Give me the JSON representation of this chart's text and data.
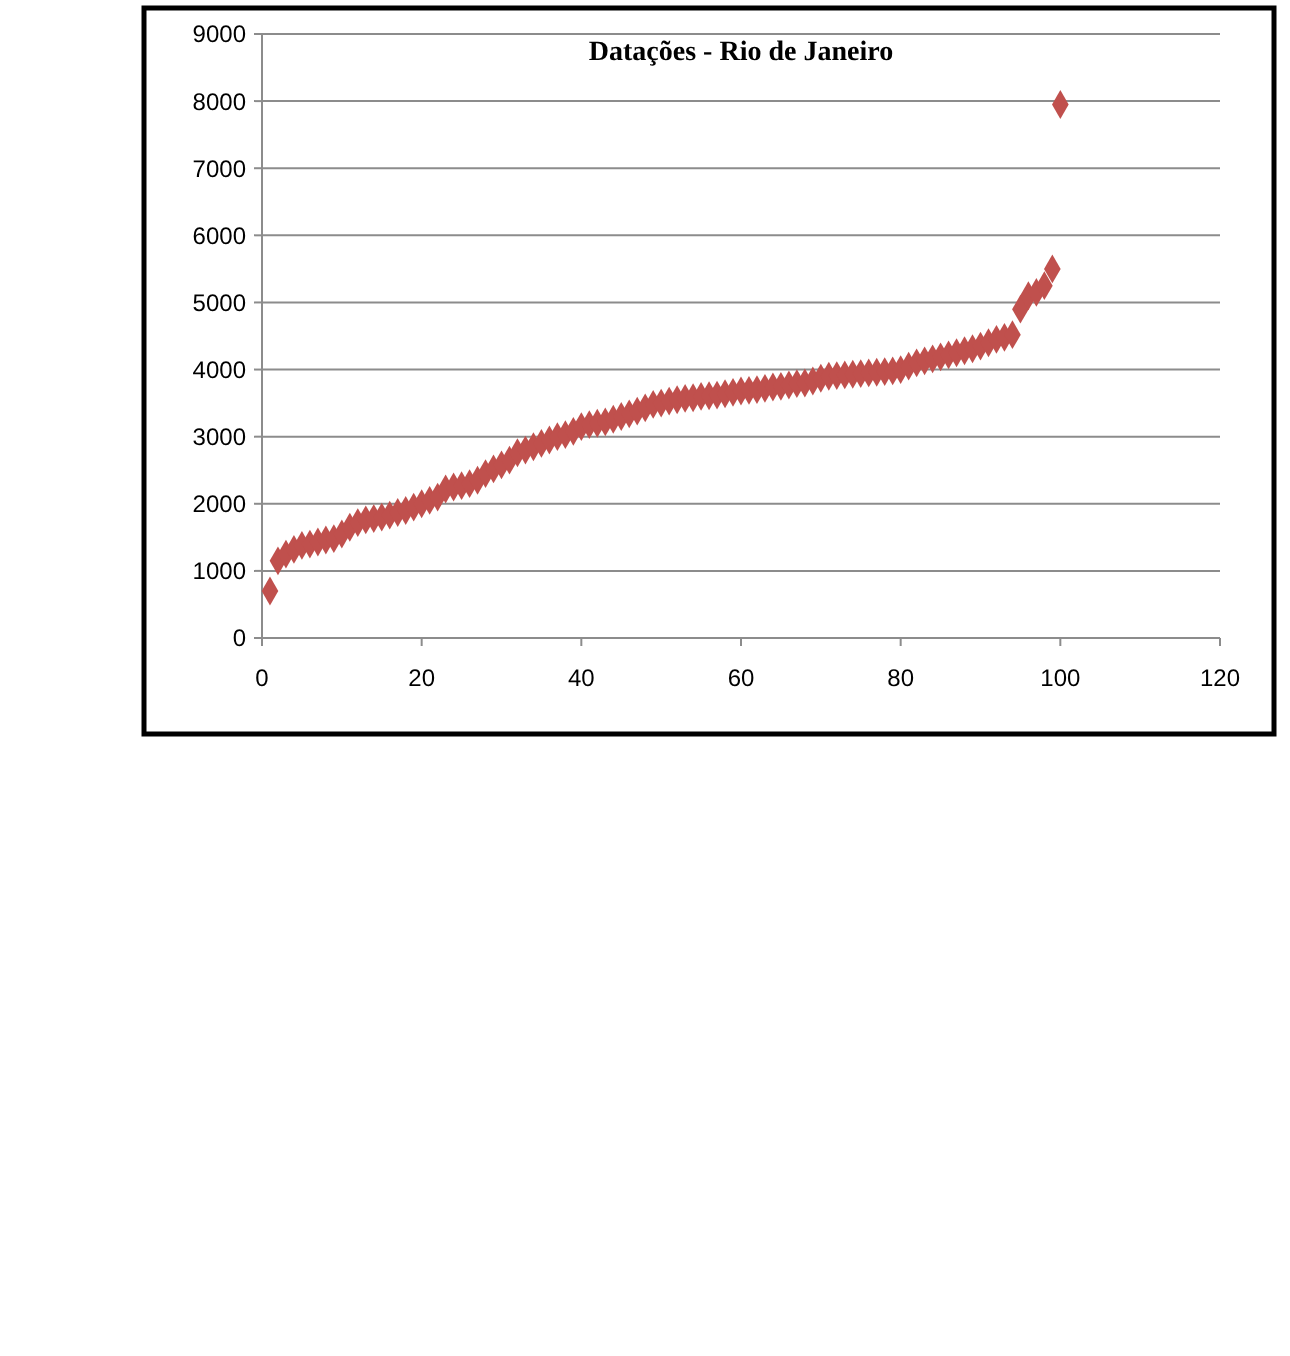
{
  "chart_data": {
    "type": "scatter",
    "title": "Datações - Rio de Janeiro",
    "x": [
      1,
      2,
      3,
      4,
      5,
      6,
      7,
      8,
      9,
      10,
      11,
      12,
      13,
      14,
      15,
      16,
      17,
      18,
      19,
      20,
      21,
      22,
      23,
      24,
      25,
      26,
      27,
      28,
      29,
      30,
      31,
      32,
      33,
      34,
      35,
      36,
      37,
      38,
      39,
      40,
      41,
      42,
      43,
      44,
      45,
      46,
      47,
      48,
      49,
      50,
      51,
      52,
      53,
      54,
      55,
      56,
      57,
      58,
      59,
      60,
      61,
      62,
      63,
      64,
      65,
      66,
      67,
      68,
      69,
      70,
      71,
      72,
      73,
      74,
      75,
      76,
      77,
      78,
      79,
      80,
      81,
      82,
      83,
      84,
      85,
      86,
      87,
      88,
      89,
      90,
      91,
      92,
      93,
      94,
      95,
      96,
      97,
      98,
      99,
      100
    ],
    "series": [
      {
        "color": "#c0504d",
        "values": [
          700,
          1150,
          1250,
          1320,
          1380,
          1400,
          1430,
          1460,
          1480,
          1550,
          1650,
          1720,
          1760,
          1780,
          1800,
          1830,
          1870,
          1900,
          1950,
          2000,
          2050,
          2100,
          2220,
          2250,
          2270,
          2300,
          2350,
          2450,
          2520,
          2580,
          2650,
          2760,
          2800,
          2850,
          2900,
          2950,
          3000,
          3030,
          3080,
          3150,
          3180,
          3200,
          3220,
          3260,
          3300,
          3340,
          3380,
          3430,
          3480,
          3500,
          3530,
          3550,
          3570,
          3580,
          3600,
          3610,
          3620,
          3640,
          3660,
          3680,
          3690,
          3700,
          3720,
          3740,
          3750,
          3770,
          3790,
          3800,
          3830,
          3870,
          3900,
          3910,
          3920,
          3930,
          3940,
          3950,
          3960,
          3970,
          3980,
          4000,
          4050,
          4100,
          4130,
          4160,
          4190,
          4220,
          4250,
          4280,
          4310,
          4350,
          4400,
          4450,
          4480,
          4520,
          4900,
          5100,
          5150,
          5250,
          5500,
          7950
        ]
      }
    ],
    "xlim": [
      0,
      120
    ],
    "xticks": [
      0,
      20,
      40,
      60,
      80,
      100,
      120
    ],
    "ylim": [
      0,
      9000
    ],
    "yticks": [
      0,
      1000,
      2000,
      3000,
      4000,
      5000,
      6000,
      7000,
      8000,
      9000
    ],
    "grid": "y",
    "marker": "diamond"
  }
}
